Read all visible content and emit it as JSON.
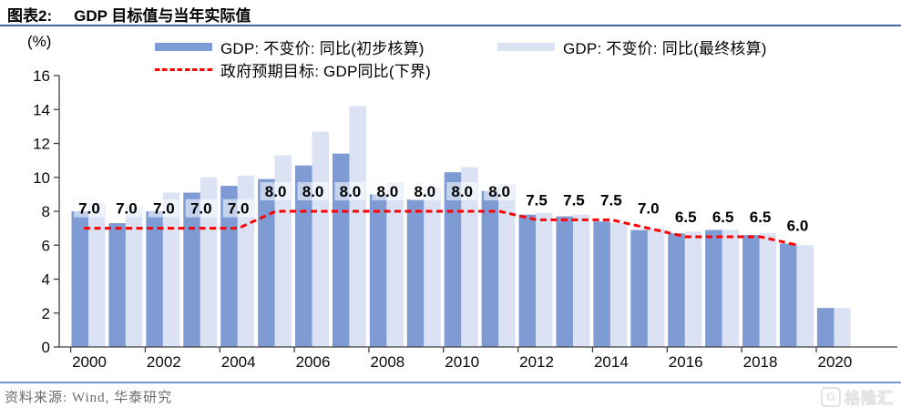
{
  "header": {
    "tag": "图表2:",
    "title": "GDP 目标值与当年实际值"
  },
  "unit_label": "(%)",
  "legend": [
    {
      "label": "GDP: 不变价: 同比(初步核算)",
      "type": "bar",
      "color": "#7E9BD3"
    },
    {
      "label": "GDP: 不变价: 同比(最终核算)",
      "type": "bar",
      "color": "#DAE2F3"
    },
    {
      "label": "政府预期目标: GDP同比(下界)",
      "type": "line",
      "color": "#FF0000"
    }
  ],
  "chart_data": {
    "type": "bar",
    "title": "GDP 目标值与当年实际值",
    "xlabel": "",
    "ylabel": "(%)",
    "ylim": [
      0,
      16
    ],
    "yticks": [
      0,
      2,
      4,
      6,
      8,
      10,
      12,
      14,
      16
    ],
    "xticks": [
      2000,
      2002,
      2004,
      2006,
      2008,
      2010,
      2012,
      2014,
      2016,
      2018,
      2020
    ],
    "grid": false,
    "legend_position": "top",
    "categories": [
      2000,
      2001,
      2002,
      2003,
      2004,
      2005,
      2006,
      2007,
      2008,
      2009,
      2010,
      2011,
      2012,
      2013,
      2014,
      2015,
      2016,
      2017,
      2018,
      2019,
      2020
    ],
    "series": [
      {
        "name": "GDP: 不变价: 同比(初步核算)",
        "type": "bar",
        "color": "#7E9BD3",
        "values": [
          8.0,
          7.3,
          8.0,
          9.1,
          9.5,
          9.9,
          10.7,
          11.4,
          9.0,
          8.7,
          10.3,
          9.2,
          7.8,
          7.7,
          7.4,
          6.9,
          6.7,
          6.9,
          6.6,
          6.1,
          2.3
        ]
      },
      {
        "name": "GDP: 不变价: 同比(最终核算)",
        "type": "bar",
        "color": "#DAE2F3",
        "values": [
          8.5,
          8.3,
          9.1,
          10.0,
          10.1,
          11.3,
          12.7,
          14.2,
          9.7,
          9.4,
          10.6,
          9.6,
          7.9,
          7.8,
          7.3,
          7.0,
          6.8,
          6.9,
          6.7,
          6.0,
          2.3
        ]
      },
      {
        "name": "政府预期目标: GDP同比(下界)",
        "type": "line",
        "style": "dashed",
        "color": "#FF0000",
        "values": [
          7.0,
          7.0,
          7.0,
          7.0,
          7.0,
          8.0,
          8.0,
          8.0,
          8.0,
          8.0,
          8.0,
          8.0,
          7.5,
          7.5,
          7.5,
          7.0,
          6.5,
          6.5,
          6.5,
          6.0,
          null
        ]
      }
    ],
    "line_value_labels": [
      "7.0",
      "7.0",
      "7.0",
      "7.0",
      "7.0",
      "8.0",
      "8.0",
      "8.0",
      "8.0",
      "8.0",
      "8.0",
      "8.0",
      "7.5",
      "7.5",
      "7.5",
      "7.0",
      "6.5",
      "6.5",
      "6.5",
      "6.0",
      null
    ]
  },
  "footer": {
    "source": "资料来源: Wind, 华泰研究",
    "watermark_logo": "G",
    "watermark": "格隆汇"
  }
}
